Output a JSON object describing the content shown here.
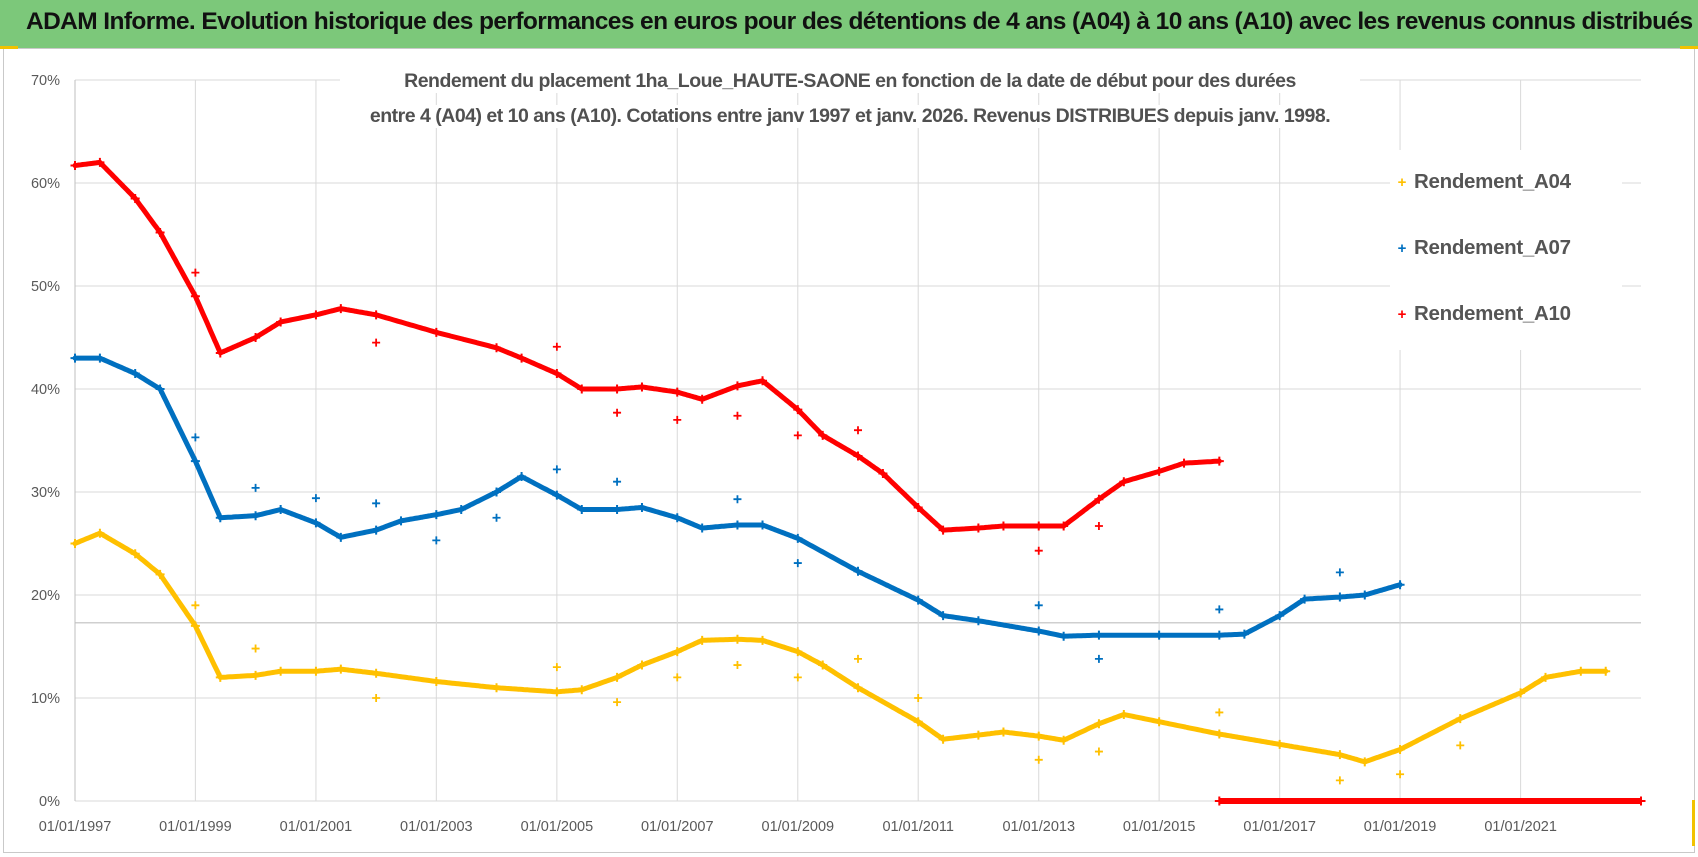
{
  "window_title": "ADAM Informe. Evolution historique des performances en euros pour des détentions de 4 ans (A04) à 10 ans (A10) avec les revenus connus distribués",
  "chart_data": {
    "type": "scatter",
    "title_line1": "Rendement du placement 1ha_Loue_HAUTE-SAONE en fonction de la date de début pour des durées",
    "title_line2": "entre 4 (A04) et 10 ans (A10).  Cotations entre janv 1997 et janv. 2026. Revenus DISTRIBUES depuis janv. 1998.",
    "xlabel": "",
    "ylabel": "",
    "x_ticks": [
      "01/01/1997",
      "01/01/1999",
      "01/01/2001",
      "01/01/2003",
      "01/01/2005",
      "01/01/2007",
      "01/01/2009",
      "01/01/2011",
      "01/01/2013",
      "01/01/2015",
      "01/01/2017",
      "01/01/2019",
      "01/01/2021"
    ],
    "y_ticks": [
      "0%",
      "10%",
      "20%",
      "30%",
      "40%",
      "50%",
      "60%",
      "70%"
    ],
    "ylim": [
      0,
      0.7
    ],
    "xlim": [
      "1997-01-01",
      "2023-01-01"
    ],
    "grid": true,
    "legend_position": "right",
    "series": [
      {
        "name": "Rendement_A04",
        "color": "#ffc000",
        "points": [
          [
            "1997-01-01",
            0.25
          ],
          [
            "1997-06-01",
            0.26
          ],
          [
            "1998-01-01",
            0.24
          ],
          [
            "1998-06-01",
            0.22
          ],
          [
            "1999-01-01",
            0.17
          ],
          [
            "1999-06-01",
            0.12
          ],
          [
            "2000-01-01",
            0.122
          ],
          [
            "2000-06-01",
            0.126
          ],
          [
            "2001-01-01",
            0.126
          ],
          [
            "2001-06-01",
            0.128
          ],
          [
            "2002-01-01",
            0.124
          ],
          [
            "2003-01-01",
            0.116
          ],
          [
            "2004-01-01",
            0.11
          ],
          [
            "2005-01-01",
            0.106
          ],
          [
            "2005-06-01",
            0.108
          ],
          [
            "2006-01-01",
            0.12
          ],
          [
            "2006-06-01",
            0.132
          ],
          [
            "2007-01-01",
            0.145
          ],
          [
            "2007-06-01",
            0.156
          ],
          [
            "2008-01-01",
            0.157
          ],
          [
            "2008-06-01",
            0.156
          ],
          [
            "2009-01-01",
            0.145
          ],
          [
            "2009-06-01",
            0.132
          ],
          [
            "2010-01-01",
            0.11
          ],
          [
            "2011-01-01",
            0.077
          ],
          [
            "2011-06-01",
            0.06
          ],
          [
            "2012-01-01",
            0.064
          ],
          [
            "2012-06-01",
            0.067
          ],
          [
            "2013-01-01",
            0.063
          ],
          [
            "2013-06-01",
            0.059
          ],
          [
            "2014-01-01",
            0.075
          ],
          [
            "2014-06-01",
            0.084
          ],
          [
            "2015-01-01",
            0.077
          ],
          [
            "2016-01-01",
            0.065
          ],
          [
            "2017-01-01",
            0.055
          ],
          [
            "2018-01-01",
            0.045
          ],
          [
            "2018-06-01",
            0.038
          ],
          [
            "2019-01-01",
            0.05
          ],
          [
            "2020-01-01",
            0.08
          ],
          [
            "2021-01-01",
            0.105
          ],
          [
            "2021-06-01",
            0.12
          ],
          [
            "2022-01-01",
            0.126
          ],
          [
            "2022-06-01",
            0.126
          ]
        ],
        "outliers": [
          [
            "1999-01-01",
            0.19
          ],
          [
            "2000-01-01",
            0.148
          ],
          [
            "2002-01-01",
            0.1
          ],
          [
            "2005-01-01",
            0.13
          ],
          [
            "2006-01-01",
            0.096
          ],
          [
            "2007-01-01",
            0.12
          ],
          [
            "2008-01-01",
            0.132
          ],
          [
            "2009-01-01",
            0.12
          ],
          [
            "2010-01-01",
            0.138
          ],
          [
            "2011-01-01",
            0.1
          ],
          [
            "2013-01-01",
            0.04
          ],
          [
            "2014-01-01",
            0.048
          ],
          [
            "2016-01-01",
            0.086
          ],
          [
            "2018-01-01",
            0.02
          ],
          [
            "2019-01-01",
            0.026
          ],
          [
            "2020-01-01",
            0.054
          ]
        ]
      },
      {
        "name": "Rendement_A07",
        "color": "#0070c0",
        "points": [
          [
            "1997-01-01",
            0.43
          ],
          [
            "1997-06-01",
            0.43
          ],
          [
            "1998-01-01",
            0.415
          ],
          [
            "1998-06-01",
            0.4
          ],
          [
            "1999-01-01",
            0.33
          ],
          [
            "1999-06-01",
            0.275
          ],
          [
            "2000-01-01",
            0.277
          ],
          [
            "2000-06-01",
            0.283
          ],
          [
            "2001-01-01",
            0.27
          ],
          [
            "2001-06-01",
            0.256
          ],
          [
            "2002-01-01",
            0.263
          ],
          [
            "2002-06-01",
            0.272
          ],
          [
            "2003-01-01",
            0.278
          ],
          [
            "2003-06-01",
            0.283
          ],
          [
            "2004-01-01",
            0.3
          ],
          [
            "2004-06-01",
            0.315
          ],
          [
            "2005-01-01",
            0.297
          ],
          [
            "2005-06-01",
            0.283
          ],
          [
            "2006-01-01",
            0.283
          ],
          [
            "2006-06-01",
            0.285
          ],
          [
            "2007-01-01",
            0.275
          ],
          [
            "2007-06-01",
            0.265
          ],
          [
            "2008-01-01",
            0.268
          ],
          [
            "2008-06-01",
            0.268
          ],
          [
            "2009-01-01",
            0.255
          ],
          [
            "2010-01-01",
            0.223
          ],
          [
            "2011-01-01",
            0.195
          ],
          [
            "2011-06-01",
            0.18
          ],
          [
            "2012-01-01",
            0.175
          ],
          [
            "2013-01-01",
            0.165
          ],
          [
            "2013-06-01",
            0.16
          ],
          [
            "2014-01-01",
            0.161
          ],
          [
            "2015-01-01",
            0.161
          ],
          [
            "2016-01-01",
            0.161
          ],
          [
            "2016-06-01",
            0.162
          ],
          [
            "2017-01-01",
            0.18
          ],
          [
            "2017-06-01",
            0.196
          ],
          [
            "2018-01-01",
            0.198
          ],
          [
            "2018-06-01",
            0.2
          ],
          [
            "2019-01-01",
            0.21
          ]
        ],
        "outliers": [
          [
            "1999-01-01",
            0.353
          ],
          [
            "2000-01-01",
            0.304
          ],
          [
            "2001-01-01",
            0.294
          ],
          [
            "2002-01-01",
            0.289
          ],
          [
            "2003-01-01",
            0.253
          ],
          [
            "2004-01-01",
            0.275
          ],
          [
            "2005-01-01",
            0.322
          ],
          [
            "2006-01-01",
            0.31
          ],
          [
            "2008-01-01",
            0.293
          ],
          [
            "2009-01-01",
            0.231
          ],
          [
            "2013-01-01",
            0.19
          ],
          [
            "2014-01-01",
            0.138
          ],
          [
            "2016-01-01",
            0.186
          ],
          [
            "2018-01-01",
            0.222
          ]
        ]
      },
      {
        "name": "Rendement_A10",
        "color": "#ff0000",
        "points": [
          [
            "1997-01-01",
            0.617
          ],
          [
            "1997-06-01",
            0.62
          ],
          [
            "1998-01-01",
            0.585
          ],
          [
            "1998-06-01",
            0.552
          ],
          [
            "1999-01-01",
            0.49
          ],
          [
            "1999-06-01",
            0.435
          ],
          [
            "2000-01-01",
            0.45
          ],
          [
            "2000-06-01",
            0.465
          ],
          [
            "2001-01-01",
            0.472
          ],
          [
            "2001-06-01",
            0.478
          ],
          [
            "2002-01-01",
            0.472
          ],
          [
            "2003-01-01",
            0.455
          ],
          [
            "2004-01-01",
            0.44
          ],
          [
            "2004-06-01",
            0.43
          ],
          [
            "2005-01-01",
            0.415
          ],
          [
            "2005-06-01",
            0.4
          ],
          [
            "2006-01-01",
            0.4
          ],
          [
            "2006-06-01",
            0.402
          ],
          [
            "2007-01-01",
            0.397
          ],
          [
            "2007-06-01",
            0.39
          ],
          [
            "2008-01-01",
            0.403
          ],
          [
            "2008-06-01",
            0.408
          ],
          [
            "2009-01-01",
            0.38
          ],
          [
            "2009-06-01",
            0.355
          ],
          [
            "2010-01-01",
            0.335
          ],
          [
            "2010-06-01",
            0.318
          ],
          [
            "2011-01-01",
            0.285
          ],
          [
            "2011-06-01",
            0.263
          ],
          [
            "2012-01-01",
            0.265
          ],
          [
            "2012-06-01",
            0.267
          ],
          [
            "2013-01-01",
            0.267
          ],
          [
            "2013-06-01",
            0.267
          ],
          [
            "2014-01-01",
            0.293
          ],
          [
            "2014-06-01",
            0.31
          ],
          [
            "2015-01-01",
            0.32
          ],
          [
            "2015-06-01",
            0.328
          ],
          [
            "2016-01-01",
            0.33
          ]
        ],
        "zero_segment": [
          [
            "2016-01-01",
            0.0
          ],
          [
            "2023-01-01",
            0.0
          ]
        ],
        "outliers": [
          [
            "1999-01-01",
            0.513
          ],
          [
            "2002-01-01",
            0.445
          ],
          [
            "2005-01-01",
            0.441
          ],
          [
            "2006-01-01",
            0.377
          ],
          [
            "2007-01-01",
            0.37
          ],
          [
            "2008-01-01",
            0.374
          ],
          [
            "2009-01-01",
            0.355
          ],
          [
            "2010-01-01",
            0.36
          ],
          [
            "2013-01-01",
            0.243
          ],
          [
            "2014-01-01",
            0.267
          ]
        ]
      }
    ]
  }
}
